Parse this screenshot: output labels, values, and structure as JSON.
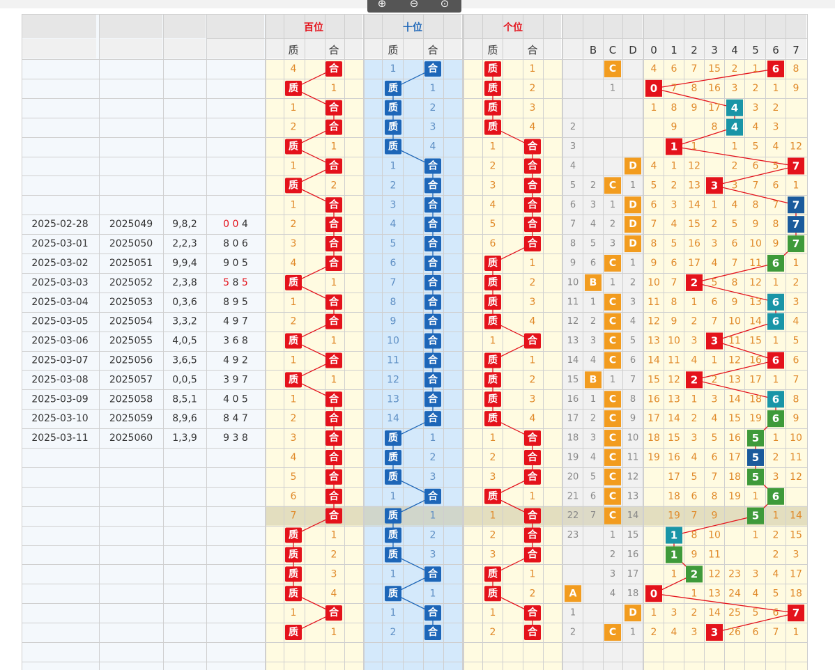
{
  "toolbar": {
    "buttons": [
      {
        "name": "zoom-in-button",
        "glyph": "⊕"
      },
      {
        "name": "zoom-out-button",
        "glyph": "⊖"
      },
      {
        "name": "zoom-reset-button",
        "glyph": "⊙"
      }
    ]
  },
  "groups": {
    "hundreds": "百位",
    "tens": "十位",
    "units": "个位"
  },
  "sub": {
    "prime": "质",
    "composite": "合"
  },
  "shape_cols": [
    "B",
    "C",
    "D"
  ],
  "digit_cols": [
    "0",
    "1",
    "2",
    "3",
    "4",
    "5",
    "6",
    "7"
  ],
  "colors": {
    "red": "#e4121b",
    "blue": "#1d66b8",
    "orange": "#f29c1f",
    "green": "#3e9a3a",
    "teal": "#1995a7",
    "navy": "#1a5a9c",
    "yellow_bg": "#fffbe1",
    "blue_bg": "#d4e9fb",
    "num": "#e08a2a",
    "gray_bg": "#e6e6e6"
  },
  "rows": [
    {
      "date": "",
      "issue": "",
      "test": "",
      "draw": "",
      "h": "4",
      "t": "1",
      "u": "1",
      "A": "",
      "B": "",
      "C": "C",
      "D": "",
      "dg": [
        "4",
        "6",
        "7",
        "15",
        "2",
        "1",
        "6",
        "8"
      ]
    },
    {
      "date": "",
      "issue": "",
      "test": "",
      "draw": "",
      "h": "1",
      "t": "1",
      "u": "2",
      "A": "",
      "B": "",
      "C": "1",
      "D": "",
      "dg": [
        "0",
        "7",
        "8",
        "16",
        "3",
        "2",
        "1",
        "9"
      ]
    },
    {
      "date": "",
      "issue": "",
      "test": "",
      "draw": "",
      "h": "1",
      "t": "2",
      "u": "3",
      "A": "",
      "B": "",
      "C": "",
      "D": "",
      "dg": [
        "1",
        "8",
        "9",
        "17",
        "4",
        "3",
        "2",
        ""
      ]
    },
    {
      "date": "",
      "issue": "",
      "test": "",
      "draw": "",
      "h": "2",
      "t": "3",
      "u": "4",
      "A": "2",
      "B": "",
      "C": "",
      "D": "",
      "dg": [
        "",
        "9",
        "",
        "8",
        "4",
        "4",
        "3",
        ""
      ]
    },
    {
      "date": "",
      "issue": "",
      "test": "",
      "draw": "",
      "h": "1",
      "t": "4",
      "u": "1",
      "A": "3",
      "B": "",
      "C": "",
      "D": "",
      "dg": [
        "",
        "1",
        "1",
        "",
        "1",
        "5",
        "4",
        "12"
      ]
    },
    {
      "date": "",
      "issue": "",
      "test": "",
      "draw": "",
      "h": "1",
      "t": "1",
      "u": "2",
      "A": "4",
      "B": "",
      "C": "",
      "D": "D",
      "dg": [
        "4",
        "1",
        "12",
        "",
        "2",
        "6",
        "5",
        "7"
      ]
    },
    {
      "date": "",
      "issue": "",
      "test": "",
      "draw": "",
      "h": "2",
      "t": "2",
      "u": "3",
      "A": "5",
      "B": "2",
      "C": "C",
      "D": "1",
      "dg": [
        "5",
        "2",
        "13",
        "3",
        "3",
        "7",
        "6",
        "1"
      ]
    },
    {
      "date": "",
      "issue": "",
      "test": "",
      "draw": "",
      "h": "1",
      "t": "3",
      "u": "4",
      "A": "6",
      "B": "3",
      "C": "1",
      "D": "D",
      "dg": [
        "6",
        "3",
        "14",
        "1",
        "4",
        "8",
        "7",
        "7"
      ]
    },
    {
      "date": "2025-02-28",
      "issue": "2025049",
      "test": "9,8,2",
      "draw": "0 0 4",
      "h": "2",
      "t": "4",
      "u": "5",
      "A": "7",
      "B": "4",
      "C": "2",
      "D": "D",
      "dg": [
        "7",
        "4",
        "15",
        "2",
        "5",
        "9",
        "8",
        "7"
      ]
    },
    {
      "date": "2025-03-01",
      "issue": "2025050",
      "test": "2,2,3",
      "draw": "8 0 6",
      "h": "3",
      "t": "5",
      "u": "6",
      "A": "8",
      "B": "5",
      "C": "3",
      "D": "D",
      "dg": [
        "8",
        "5",
        "16",
        "3",
        "6",
        "10",
        "9",
        "7"
      ]
    },
    {
      "date": "2025-03-02",
      "issue": "2025051",
      "test": "9,9,4",
      "draw": "9 0 5",
      "h": "4",
      "t": "6",
      "u": "1",
      "A": "9",
      "B": "6",
      "C": "C",
      "D": "1",
      "dg": [
        "9",
        "6",
        "17",
        "4",
        "7",
        "11",
        "6",
        "1"
      ]
    },
    {
      "date": "2025-03-03",
      "issue": "2025052",
      "test": "2,3,8",
      "draw": "5 8 5",
      "h": "1",
      "t": "7",
      "u": "2",
      "A": "10",
      "B": "B",
      "C": "1",
      "D": "2",
      "dg": [
        "10",
        "7",
        "2",
        "5",
        "8",
        "12",
        "1",
        "2"
      ]
    },
    {
      "date": "2025-03-04",
      "issue": "2025053",
      "test": "0,3,6",
      "draw": "8 9 5",
      "h": "1",
      "t": "8",
      "u": "3",
      "A": "11",
      "B": "1",
      "C": "C",
      "D": "3",
      "dg": [
        "11",
        "8",
        "1",
        "6",
        "9",
        "13",
        "6",
        "3"
      ]
    },
    {
      "date": "2025-03-05",
      "issue": "2025054",
      "test": "3,3,2",
      "draw": "4 9 7",
      "h": "2",
      "t": "9",
      "u": "4",
      "A": "12",
      "B": "2",
      "C": "C",
      "D": "4",
      "dg": [
        "12",
        "9",
        "2",
        "7",
        "10",
        "14",
        "6",
        "4"
      ]
    },
    {
      "date": "2025-03-06",
      "issue": "2025055",
      "test": "4,0,5",
      "draw": "3 6 8",
      "h": "1",
      "t": "10",
      "u": "1",
      "A": "13",
      "B": "3",
      "C": "C",
      "D": "5",
      "dg": [
        "13",
        "10",
        "3",
        "3",
        "11",
        "15",
        "1",
        "5"
      ]
    },
    {
      "date": "2025-03-07",
      "issue": "2025056",
      "test": "3,6,5",
      "draw": "4 9 2",
      "h": "1",
      "t": "11",
      "u": "1",
      "A": "14",
      "B": "4",
      "C": "C",
      "D": "6",
      "dg": [
        "14",
        "11",
        "4",
        "1",
        "12",
        "16",
        "6",
        "6"
      ]
    },
    {
      "date": "2025-03-08",
      "issue": "2025057",
      "test": "0,0,5",
      "draw": "3 9 7",
      "h": "1",
      "t": "12",
      "u": "2",
      "A": "15",
      "B": "B",
      "C": "1",
      "D": "7",
      "dg": [
        "15",
        "12",
        "2",
        "2",
        "13",
        "17",
        "1",
        "7"
      ]
    },
    {
      "date": "2025-03-09",
      "issue": "2025058",
      "test": "8,5,1",
      "draw": "4 0 5",
      "h": "1",
      "t": "13",
      "u": "3",
      "A": "16",
      "B": "1",
      "C": "C",
      "D": "8",
      "dg": [
        "16",
        "13",
        "1",
        "3",
        "14",
        "18",
        "6",
        "8"
      ]
    },
    {
      "date": "2025-03-10",
      "issue": "2025059",
      "test": "8,9,6",
      "draw": "8 4 7",
      "h": "2",
      "t": "14",
      "u": "4",
      "A": "17",
      "B": "2",
      "C": "C",
      "D": "9",
      "dg": [
        "17",
        "14",
        "2",
        "4",
        "15",
        "19",
        "6",
        "9"
      ]
    },
    {
      "date": "2025-03-11",
      "issue": "2025060",
      "test": "1,3,9",
      "draw": "9 3 8",
      "h": "3",
      "t": "1",
      "u": "1",
      "A": "18",
      "B": "3",
      "C": "C",
      "D": "10",
      "dg": [
        "18",
        "15",
        "3",
        "5",
        "16",
        "5",
        "1",
        "10"
      ]
    },
    {
      "date": "",
      "issue": "",
      "test": "",
      "draw": "",
      "h": "4",
      "t": "2",
      "u": "2",
      "A": "19",
      "B": "4",
      "C": "C",
      "D": "11",
      "dg": [
        "19",
        "16",
        "4",
        "6",
        "17",
        "5",
        "2",
        "11"
      ]
    },
    {
      "date": "",
      "issue": "",
      "test": "",
      "draw": "",
      "h": "5",
      "t": "3",
      "u": "3",
      "A": "20",
      "B": "5",
      "C": "C",
      "D": "12",
      "dg": [
        "",
        "17",
        "5",
        "7",
        "18",
        "5",
        "3",
        "12"
      ]
    },
    {
      "date": "",
      "issue": "",
      "test": "",
      "draw": "",
      "h": "6",
      "t": "1",
      "u": "1",
      "A": "21",
      "B": "6",
      "C": "C",
      "D": "13",
      "dg": [
        "",
        "18",
        "6",
        "8",
        "19",
        "1",
        "6",
        ""
      ]
    },
    {
      "date": "",
      "issue": "",
      "test": "",
      "draw": "",
      "h": "7",
      "t": "1",
      "u": "1",
      "A": "22",
      "B": "7",
      "C": "C",
      "D": "14",
      "dg": [
        "",
        "19",
        "7",
        "9",
        "",
        "5",
        "1",
        "14"
      ]
    },
    {
      "date": "",
      "issue": "",
      "test": "",
      "draw": "",
      "h": "1",
      "t": "2",
      "u": "2",
      "A": "23",
      "B": "",
      "C": "1",
      "D": "15",
      "dg": [
        "",
        "1",
        "8",
        "10",
        "",
        "1",
        "2",
        "15"
      ]
    },
    {
      "date": "",
      "issue": "",
      "test": "",
      "draw": "",
      "h": "2",
      "t": "3",
      "u": "3",
      "A": "",
      "B": "",
      "C": "2",
      "D": "16",
      "dg": [
        "",
        "1",
        "9",
        "11",
        "",
        "",
        "2",
        "3"
      ]
    },
    {
      "date": "",
      "issue": "",
      "test": "",
      "draw": "",
      "h": "3",
      "t": "1",
      "u": "1",
      "A": "",
      "B": "",
      "C": "3",
      "D": "17",
      "dg": [
        "",
        "1",
        "2",
        "12",
        "23",
        "3",
        "4",
        "17"
      ]
    },
    {
      "date": "",
      "issue": "",
      "test": "",
      "draw": "",
      "h": "4",
      "t": "1",
      "u": "2",
      "A": "A",
      "B": "",
      "C": "4",
      "D": "18",
      "dg": [
        "0",
        "",
        "1",
        "13",
        "24",
        "4",
        "5",
        "18"
      ]
    },
    {
      "date": "",
      "issue": "",
      "test": "",
      "draw": "",
      "h": "1",
      "t": "1",
      "u": "1",
      "A": "1",
      "B": "",
      "C": "",
      "D": "D",
      "dg": [
        "1",
        "3",
        "2",
        "14",
        "25",
        "5",
        "6",
        "7"
      ]
    },
    {
      "date": "",
      "issue": "",
      "test": "",
      "draw": "",
      "h": "1",
      "t": "2",
      "u": "2",
      "A": "2",
      "B": "",
      "C": "C",
      "D": "1",
      "dg": [
        "2",
        "4",
        "3",
        "3",
        "26",
        "6",
        "7",
        "1"
      ]
    }
  ],
  "marks": {
    "h": [
      "c",
      "p",
      "c",
      "c",
      "p",
      "c",
      "p",
      "c",
      "c",
      "c",
      "c",
      "p",
      "c",
      "c",
      "p",
      "c",
      "p",
      "c",
      "c",
      "c",
      "c",
      "c",
      "c",
      "c",
      "p",
      "p",
      "p",
      "p",
      "c",
      "p"
    ],
    "t": [
      "c",
      "p",
      "p",
      "p",
      "p",
      "c",
      "c",
      "c",
      "c",
      "c",
      "c",
      "c",
      "c",
      "c",
      "c",
      "c",
      "c",
      "c",
      "c",
      "p",
      "p",
      "p",
      "c",
      "p",
      "p",
      "p",
      "c",
      "p",
      "c",
      "c"
    ],
    "u": [
      "p",
      "p",
      "p",
      "p",
      "c",
      "c",
      "c",
      "c",
      "c",
      "c",
      "p",
      "p",
      "p",
      "p",
      "c",
      "p",
      "p",
      "p",
      "p",
      "c",
      "c",
      "c",
      "p",
      "c",
      "c",
      "c",
      "p",
      "p",
      "c",
      "c"
    ]
  },
  "shape_marks": [
    {
      "row": 0,
      "col": "C",
      "color": "orange"
    },
    {
      "row": 5,
      "col": "D",
      "color": "orange"
    },
    {
      "row": 6,
      "col": "C",
      "color": "orange"
    },
    {
      "row": 7,
      "col": "D",
      "color": "orange"
    },
    {
      "row": 8,
      "col": "D",
      "color": "orange"
    },
    {
      "row": 9,
      "col": "D",
      "color": "orange"
    },
    {
      "row": 10,
      "col": "C",
      "color": "orange"
    },
    {
      "row": 11,
      "col": "B",
      "color": "orange"
    },
    {
      "row": 12,
      "col": "C",
      "color": "orange"
    },
    {
      "row": 13,
      "col": "C",
      "color": "orange"
    },
    {
      "row": 14,
      "col": "C",
      "color": "orange"
    },
    {
      "row": 15,
      "col": "C",
      "color": "orange"
    },
    {
      "row": 16,
      "col": "B",
      "color": "orange"
    },
    {
      "row": 17,
      "col": "C",
      "color": "orange"
    },
    {
      "row": 18,
      "col": "C",
      "color": "orange"
    },
    {
      "row": 19,
      "col": "C",
      "color": "orange"
    },
    {
      "row": 20,
      "col": "C",
      "color": "orange"
    },
    {
      "row": 21,
      "col": "C",
      "color": "orange"
    },
    {
      "row": 22,
      "col": "C",
      "color": "orange"
    },
    {
      "row": 23,
      "col": "C",
      "color": "orange"
    },
    {
      "row": 27,
      "col": "A",
      "color": "orange"
    },
    {
      "row": 28,
      "col": "D",
      "color": "orange"
    },
    {
      "row": 29,
      "col": "C",
      "color": "orange"
    }
  ],
  "digit_marks": [
    {
      "row": 0,
      "col": 6,
      "color": "red"
    },
    {
      "row": 1,
      "col": 0,
      "color": "red"
    },
    {
      "row": 2,
      "col": 4,
      "color": "teal"
    },
    {
      "row": 3,
      "col": 4,
      "color": "teal"
    },
    {
      "row": 4,
      "col": 1,
      "color": "red"
    },
    {
      "row": 5,
      "col": 7,
      "color": "red"
    },
    {
      "row": 6,
      "col": 3,
      "color": "red"
    },
    {
      "row": 7,
      "col": 7,
      "color": "navy"
    },
    {
      "row": 8,
      "col": 7,
      "color": "navy"
    },
    {
      "row": 9,
      "col": 7,
      "color": "green"
    },
    {
      "row": 10,
      "col": 6,
      "color": "green"
    },
    {
      "row": 11,
      "col": 2,
      "color": "red"
    },
    {
      "row": 12,
      "col": 6,
      "color": "teal"
    },
    {
      "row": 13,
      "col": 6,
      "color": "teal"
    },
    {
      "row": 14,
      "col": 3,
      "color": "red"
    },
    {
      "row": 15,
      "col": 6,
      "color": "red"
    },
    {
      "row": 16,
      "col": 2,
      "color": "red"
    },
    {
      "row": 17,
      "col": 6,
      "color": "teal"
    },
    {
      "row": 18,
      "col": 6,
      "color": "green"
    },
    {
      "row": 19,
      "col": 5,
      "color": "green"
    },
    {
      "row": 20,
      "col": 5,
      "color": "navy"
    },
    {
      "row": 21,
      "col": 5,
      "color": "green"
    },
    {
      "row": 22,
      "col": 6,
      "color": "green"
    },
    {
      "row": 23,
      "col": 5,
      "color": "green"
    },
    {
      "row": 24,
      "col": 1,
      "color": "teal"
    },
    {
      "row": 25,
      "col": 1,
      "color": "green"
    },
    {
      "row": 26,
      "col": 2,
      "color": "green"
    },
    {
      "row": 27,
      "col": 0,
      "color": "red"
    },
    {
      "row": 28,
      "col": 7,
      "color": "red"
    },
    {
      "row": 29,
      "col": 3,
      "color": "red"
    }
  ]
}
